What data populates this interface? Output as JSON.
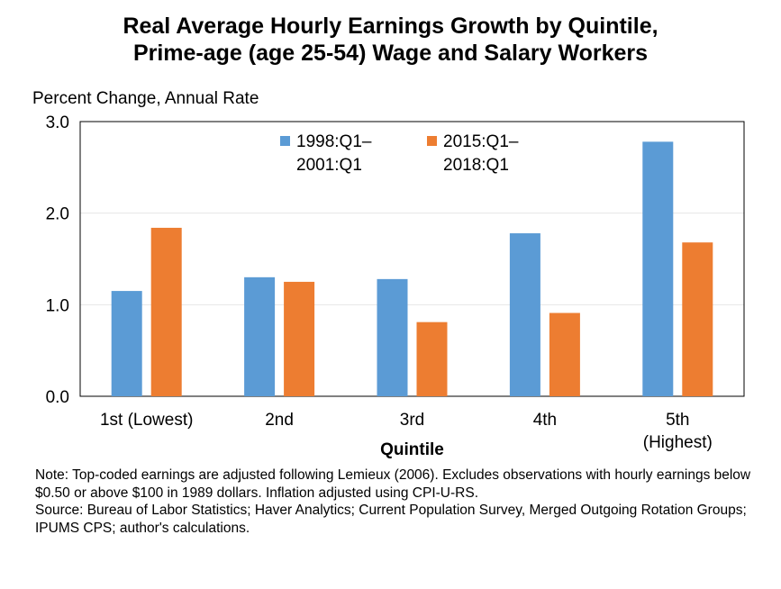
{
  "chart_data": {
    "type": "bar",
    "title": [
      "Real Average Hourly Earnings Growth by Quintile,",
      "Prime-age (age 25-54) Wage and Salary Workers"
    ],
    "ylabel": "Percent Change, Annual Rate",
    "xlabel": "Quintile",
    "categories": [
      [
        "1st (Lowest)"
      ],
      [
        "2nd"
      ],
      [
        "3rd"
      ],
      [
        "4th"
      ],
      [
        "5th",
        "(Highest)"
      ]
    ],
    "ylim": [
      0,
      3
    ],
    "yticks": [
      "0.0",
      "1.0",
      "2.0",
      "3.0"
    ],
    "grid": true,
    "legend_position": "top",
    "series": [
      {
        "name": [
          "1998:Q1–",
          "2001:Q1"
        ],
        "color": "#5B9BD5",
        "values": [
          1.15,
          1.3,
          1.28,
          1.78,
          2.78
        ]
      },
      {
        "name": [
          "2015:Q1–",
          "2018:Q1"
        ],
        "color": "#ED7D31",
        "values": [
          1.84,
          1.25,
          0.81,
          0.91,
          1.68
        ]
      }
    ]
  },
  "notes": [
    "Note: Top-coded earnings are adjusted following Lemieux (2006). Excludes observations with hourly earnings below $0.50 or above $100 in 1989 dollars. Inflation adjusted using CPI-U-RS.",
    "Source: Bureau of Labor Statistics; Haver Analytics; Current Population Survey, Merged Outgoing Rotation Groups; IPUMS CPS; author's calculations."
  ]
}
